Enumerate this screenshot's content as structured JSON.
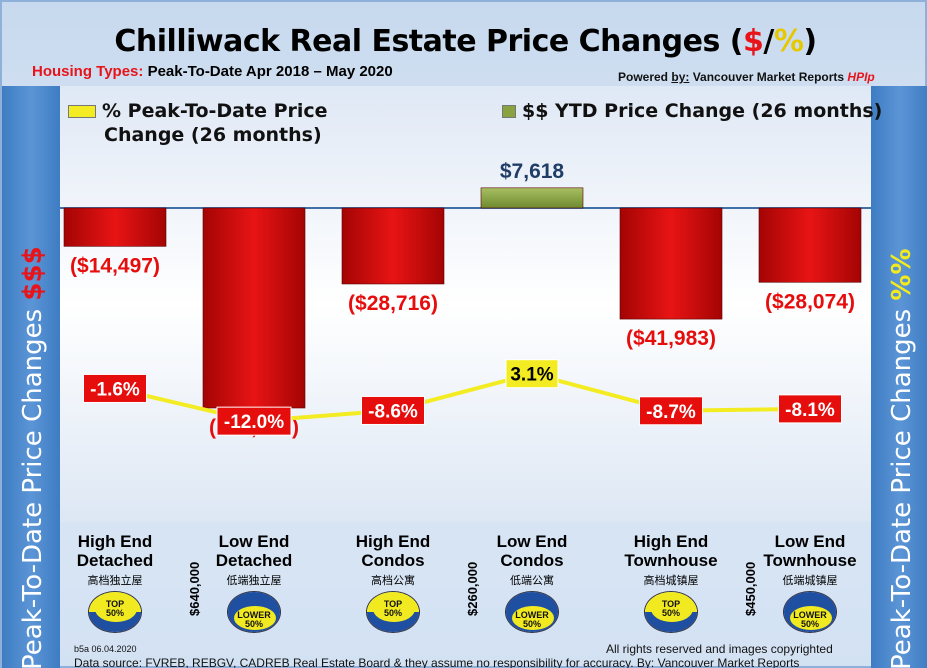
{
  "title_parts": {
    "main": "Chilliwack Real Estate Price Changes (",
    "dollar": "$",
    "slash": "/",
    "percent": "%",
    "close": ")"
  },
  "subtitle": {
    "label": "Housing Types:",
    "text": " Peak-To-Date Apr 2018 – May 2020"
  },
  "powered": {
    "prefix": "Powered ",
    "by": "by:",
    "name": " Vancouver Market Reports ",
    "brand": "HPIp"
  },
  "side_left": {
    "text": "Peak-To-Date Price Changes ",
    "accent": "$$$"
  },
  "side_right": {
    "text": "Peak-To-Date  Price  Changes  ",
    "accent": "%%"
  },
  "legend": {
    "percent_line1": "% Peak-To-Date Price",
    "percent_line2": "Change (26 months)",
    "dollar": "$$ YTD Price Change (26 months)"
  },
  "chart_data": {
    "type": "bar",
    "categories": [
      "High End Detached",
      "Low End Detached",
      "High End Condos",
      "Low End Condos",
      "High End Townhouse",
      "Low End Townhouse"
    ],
    "series": [
      {
        "name": "$$ YTD Price Change (26 months)",
        "type": "bar",
        "values": [
          -14497,
          -75592,
          -28716,
          7618,
          -41983,
          -28074
        ],
        "labels": [
          "($14,497)",
          "($75,592)",
          "($28,716)",
          "$7,618",
          "($41,983)",
          "($28,074)"
        ]
      },
      {
        "name": "% Peak-To-Date Price Change (26 months)",
        "type": "line",
        "values": [
          -1.6,
          -12.0,
          -8.6,
          3.1,
          -8.7,
          -8.1
        ],
        "labels": [
          "-1.6%",
          "-12.0%",
          "-8.6%",
          "3.1%",
          "-8.7%",
          "-8.1%"
        ]
      }
    ],
    "bar_ylim": [
      -80000,
      10000
    ],
    "line_ylim": [
      -25,
      10
    ],
    "colors": {
      "negative_bar": "#e60d0d",
      "positive_bar": "#8aa341",
      "line": "#f3ec22",
      "label_negative": "#e60d0d",
      "label_positive": "#1f3d66"
    }
  },
  "categories_display": [
    {
      "line1": "High End",
      "line2": "Detached",
      "zh": "高档独立屋",
      "badge": "top"
    },
    {
      "line1": "Low End",
      "line2": "Detached",
      "zh": "低端独立屋",
      "badge": "lower"
    },
    {
      "line1": "High End",
      "line2": "Condos",
      "zh": "高档公寓",
      "badge": "top"
    },
    {
      "line1": "Low End",
      "line2": "Condos",
      "zh": "低端公寓",
      "badge": "lower"
    },
    {
      "line1": "High End",
      "line2": "Townhouse",
      "zh": "高档城镇屋",
      "badge": "top"
    },
    {
      "line1": "Low End",
      "line2": "Townhouse",
      "zh": "低端城镇屋",
      "badge": "lower"
    }
  ],
  "badges": {
    "top": {
      "line1": "TOP",
      "line2": "50%"
    },
    "lower": {
      "line1": "LOWER",
      "line2": "50%"
    }
  },
  "price_thresholds": [
    "$640,000",
    "$260,000",
    "$450,000"
  ],
  "footer": {
    "code": "b5a 06.04.2020",
    "rights": "All rights reserved and  images copyrighted",
    "datasource": "Data source: FVREB, REBGV, CADREB Real Estate Board & they assume no responsibility for accuracy. By: Vancouver Market Reports"
  }
}
